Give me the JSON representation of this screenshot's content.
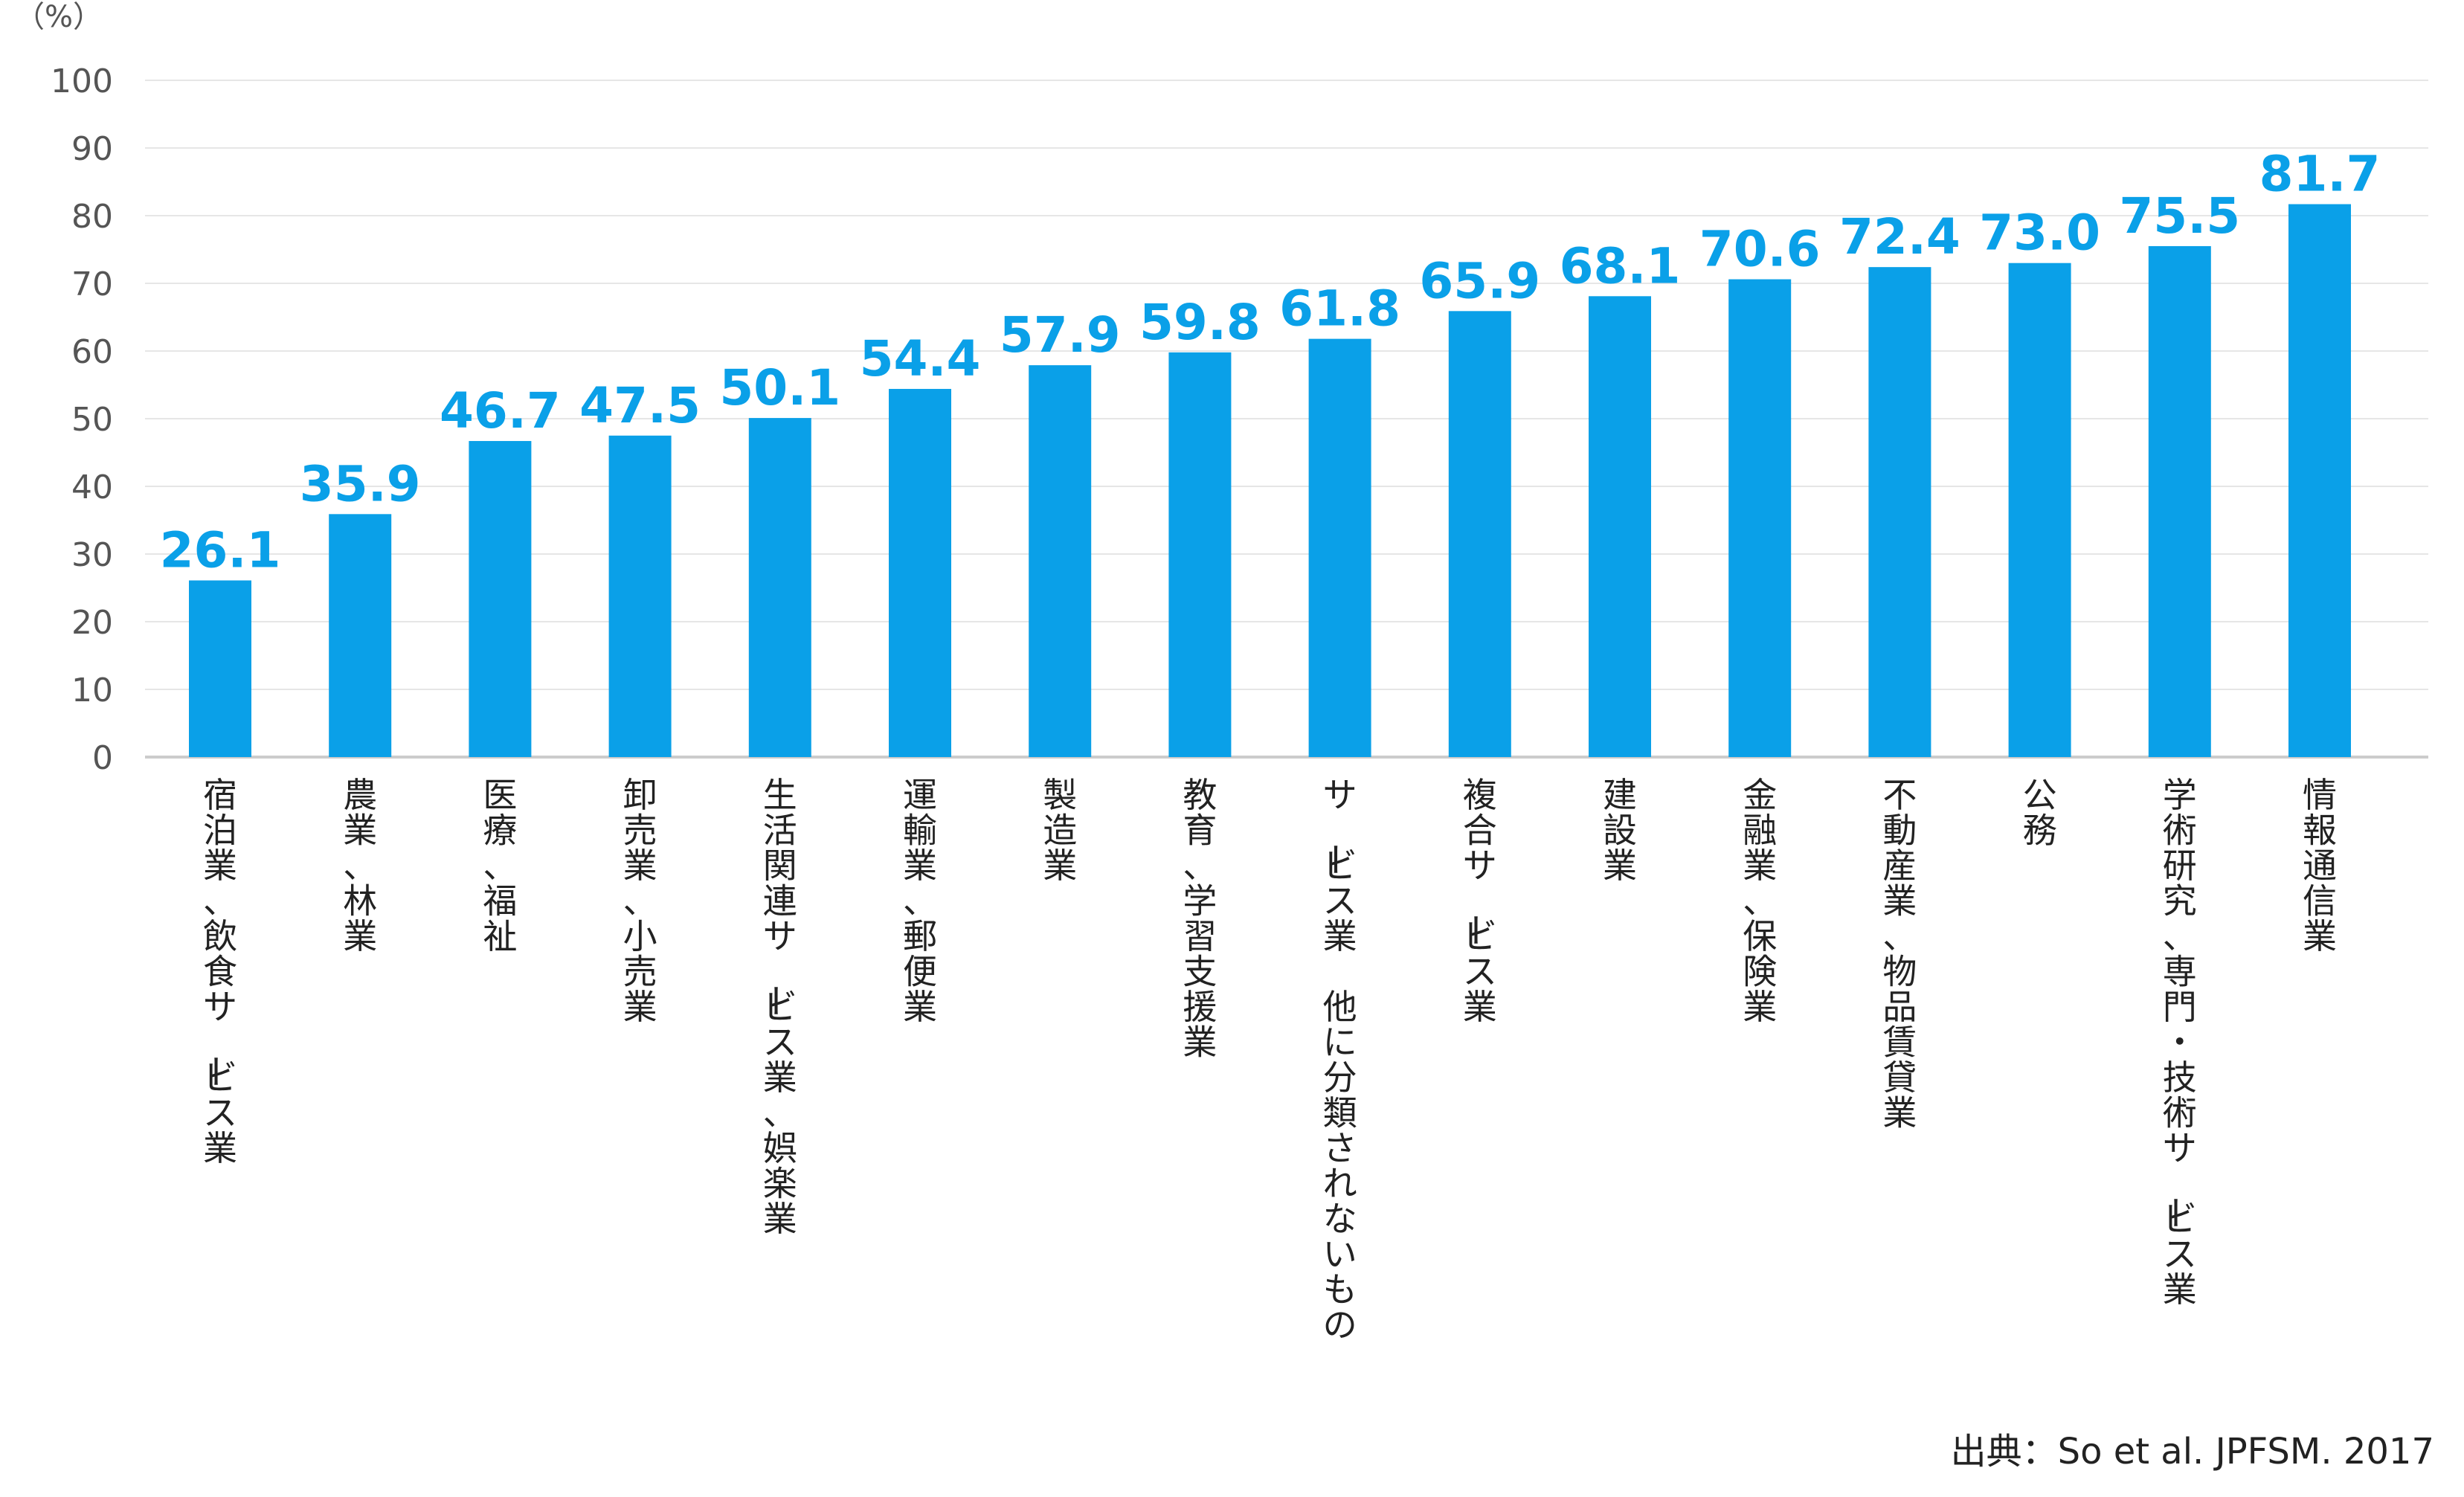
{
  "chart_data": {
    "type": "bar",
    "unit_label": "（%）",
    "ylim": [
      0,
      100
    ],
    "yticks": [
      0,
      10,
      20,
      30,
      40,
      50,
      60,
      70,
      80,
      90,
      100
    ],
    "grid": true,
    "categories": [
      "宿泊業、飲食サービス業",
      "農業、林業",
      "医療、福祉",
      "卸売業、小売業",
      "生活関連サービス業、娯楽業",
      "運輸業、郵便業",
      "製造業",
      "教育、学習支援業",
      "サービス業　他に分類されないもの",
      "複合サービス業",
      "建設業",
      "金融業、保険業",
      "不動産業、物品賃貸業",
      "公務",
      "学術研究、専門・技術サービス業",
      "情報通信業"
    ],
    "values": [
      26.1,
      35.9,
      46.7,
      47.5,
      50.1,
      54.4,
      57.9,
      59.8,
      61.8,
      65.9,
      68.1,
      70.6,
      72.4,
      73.0,
      75.5,
      81.7
    ],
    "value_labels": [
      "26.1",
      "35.9",
      "46.7",
      "47.5",
      "50.1",
      "54.4",
      "57.9",
      "59.8",
      "61.8",
      "65.9",
      "68.1",
      "70.6",
      "72.4",
      "73.0",
      "75.5",
      "81.7"
    ],
    "bar_color": "#0aa0e8",
    "label_color": "#0aa0e8",
    "grid_color": "#e6e6e6",
    "axis_color": "#cccccc"
  },
  "source": "出典：So et al. JPFSM. 2017"
}
